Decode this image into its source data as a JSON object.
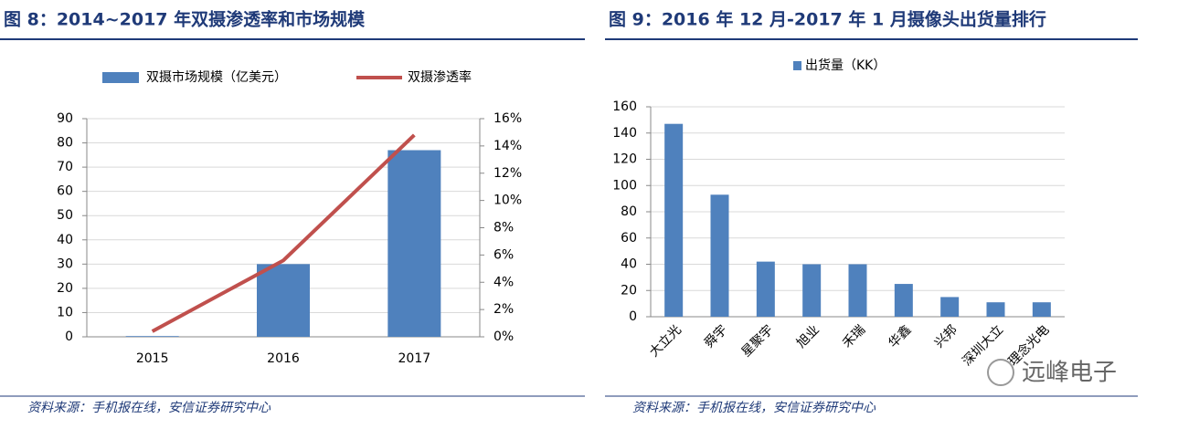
{
  "chart_data": [
    {
      "type": "combo",
      "title": "图 8：2014~2017 年双摄渗透率和市场规模",
      "categories": [
        "2015",
        "2016",
        "2017"
      ],
      "series": [
        {
          "name": "双摄市场规模（亿美元）",
          "type": "bar",
          "color": "#4f81bd",
          "values": [
            0.3,
            30,
            77
          ]
        },
        {
          "name": "双摄渗透率",
          "type": "line",
          "color": "#c0504d",
          "axis": "y2",
          "values": [
            0.4,
            5.6,
            14.8
          ]
        }
      ],
      "ylim": [
        0,
        90
      ],
      "yticks": [
        0,
        10,
        20,
        30,
        40,
        50,
        60,
        70,
        80,
        90
      ],
      "y2lim": [
        0,
        16
      ],
      "y2ticks": [
        {
          "value": 0,
          "label": "0%"
        },
        {
          "value": 2,
          "label": "2%"
        },
        {
          "value": 4,
          "label": "4%"
        },
        {
          "value": 6,
          "label": "6%"
        },
        {
          "value": 8,
          "label": "8%"
        },
        {
          "value": 10,
          "label": "10%"
        },
        {
          "value": 12,
          "label": "12%"
        },
        {
          "value": 14,
          "label": "14%"
        },
        {
          "value": 16,
          "label": "16%"
        }
      ],
      "grid": true,
      "legend": "top",
      "source": "资料来源：手机报在线，安信证券研究中心"
    },
    {
      "type": "bar",
      "title": "图 9：2016 年 12 月-2017 年 1 月摄像头出货量排行",
      "categories": [
        "大立光",
        "舜宇",
        "星聚宇",
        "旭业",
        "禾瑞",
        "华鑫",
        "兴邦",
        "深圳大立",
        "理念光电"
      ],
      "series": [
        {
          "name": "出货量（KK）",
          "color": "#4f81bd",
          "values": [
            147,
            93,
            42,
            40,
            40,
            25,
            15,
            11,
            11
          ]
        }
      ],
      "ylim": [
        0,
        160
      ],
      "yticks": [
        0,
        20,
        40,
        60,
        80,
        100,
        120,
        140,
        160
      ],
      "grid": true,
      "legend": "top",
      "source": "资料来源：手机报在线，安信证券研究中心",
      "watermark": "远峰电子"
    }
  ]
}
